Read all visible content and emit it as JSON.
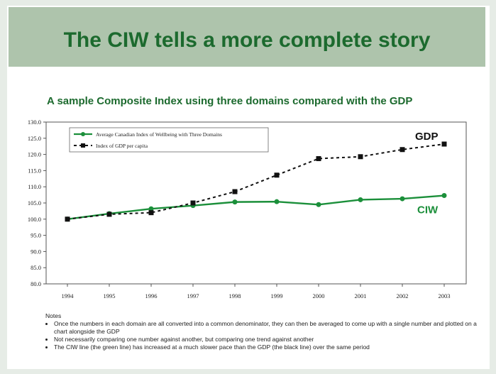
{
  "slide": {
    "title": "The CIW tells a more complete story",
    "subtitle": "A sample Composite Index using three domains compared with the GDP",
    "notes_heading": "Notes",
    "notes": [
      "Once the numbers in each domain are all converted into a common denominator, they can then be averaged to come up with a single number and plotted on a chart alongside the GDP",
      "Not necessarily comparing one number against another, but comparing one trend against another",
      "The CIW line (the green line) has increased at a much slower pace than the GDP (the black line) over the same period"
    ]
  },
  "colors": {
    "banner": "#aec4ac",
    "title_text": "#1c6a2e",
    "ciw_line": "#1b8f3a",
    "gdp_line": "#111111"
  },
  "chart_data": {
    "type": "line",
    "title": "",
    "xlabel": "",
    "ylabel": "",
    "x": [
      "1994",
      "1995",
      "1996",
      "1997",
      "1998",
      "1999",
      "2000",
      "2001",
      "2002",
      "2003"
    ],
    "ylim": [
      80.0,
      130.0
    ],
    "yticks": [
      "130.0",
      "125.0",
      "120.0",
      "115.0",
      "110.0",
      "105.0",
      "100.0",
      "95.0",
      "90.0",
      "85.0",
      "80.0"
    ],
    "grid": false,
    "legend_position": "top-left",
    "series": [
      {
        "name": "Average Canadian Index of Wellbeing with Three Domains",
        "label": "CIW",
        "color": "#1b8f3a",
        "style": "solid",
        "values": [
          100.0,
          101.7,
          103.2,
          104.2,
          105.3,
          105.4,
          104.5,
          106.0,
          106.3,
          107.3
        ]
      },
      {
        "name": "Index of GDP per capita",
        "label": "GDP",
        "color": "#111111",
        "style": "dashed",
        "values": [
          100.0,
          101.5,
          102.0,
          105.0,
          108.5,
          113.6,
          118.7,
          119.3,
          121.5,
          123.2
        ]
      }
    ]
  }
}
